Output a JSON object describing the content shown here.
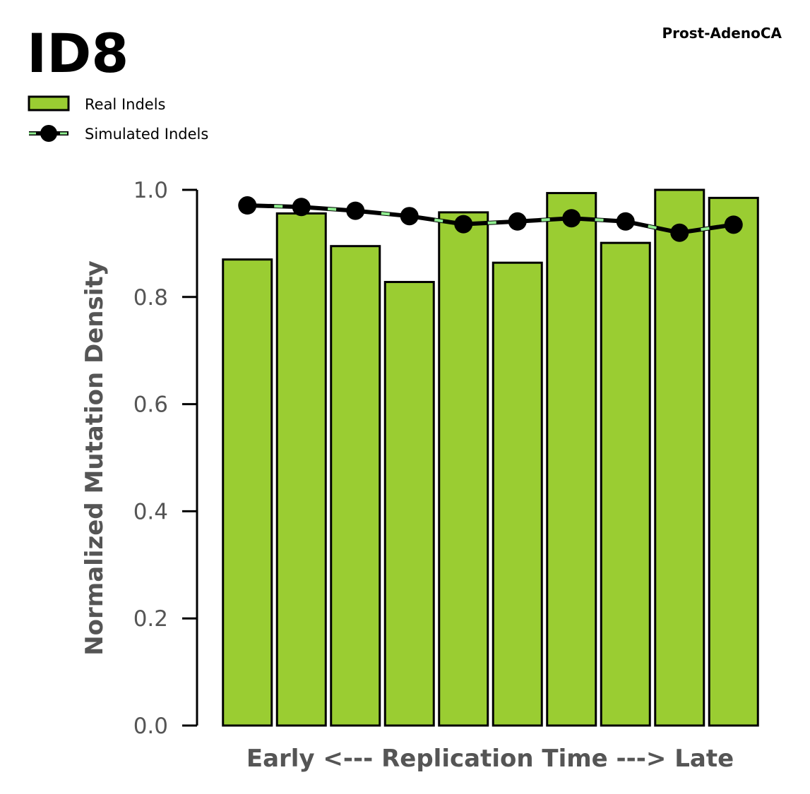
{
  "chart_data": {
    "type": "bar",
    "title": "ID8",
    "subtitle": "Prost-AdenoCA",
    "xlabel": "Early <--- Replication Time ---> Late",
    "ylabel": "Normalized Mutation Density",
    "ylim": [
      0,
      1.0
    ],
    "yticks": [
      "0.0",
      "0.2",
      "0.4",
      "0.6",
      "0.8",
      "1.0"
    ],
    "grid": false,
    "legend_placement": "top-left",
    "series": [
      {
        "name": "Real Indels",
        "kind": "bar",
        "color": "#9acd32",
        "edge_color": "#000000",
        "values": [
          0.87,
          0.956,
          0.895,
          0.828,
          0.958,
          0.864,
          0.994,
          0.901,
          1.0,
          0.985
        ]
      },
      {
        "name": "Simulated Indels",
        "kind": "line",
        "color": "#000000",
        "dash_color": "#90ee90",
        "values": [
          0.971,
          0.968,
          0.961,
          0.951,
          0.936,
          0.941,
          0.947,
          0.941,
          0.92,
          0.935
        ]
      }
    ]
  }
}
